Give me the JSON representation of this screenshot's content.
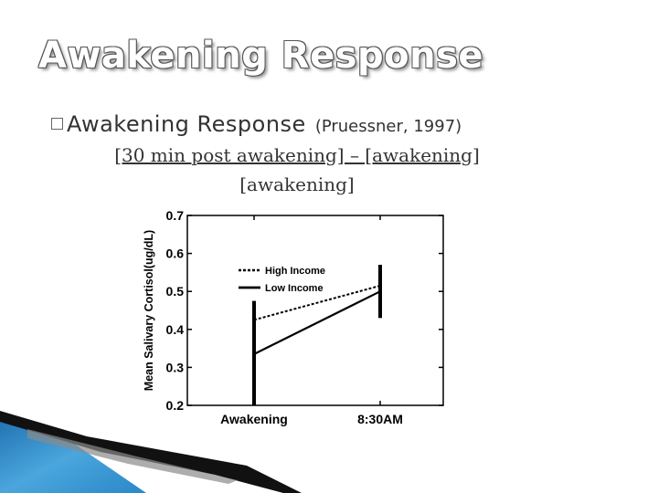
{
  "slide": {
    "title": "Awakening Response",
    "bullet": {
      "main": "Awakening Response",
      "citation": "(Pruessner, 1997)"
    },
    "formula": {
      "numerator": "[30 min post awakening] – [awakening]",
      "denominator": "[awakening]"
    }
  },
  "chart_data": {
    "type": "line",
    "categories": [
      "Awakening",
      "8:30AM"
    ],
    "ylabel": "Mean Salivary Cortisol(ug/dL)",
    "xlabel": "",
    "ylim": [
      0.2,
      0.7
    ],
    "yticks": [
      "0.2",
      "0.3",
      "0.4",
      "0.5",
      "0.6",
      "0.7"
    ],
    "legend_position": "top-left",
    "series": [
      {
        "name": "High Income",
        "style": "dotted",
        "values": [
          0.425,
          0.515
        ],
        "error": [
          0.05,
          0.05
        ]
      },
      {
        "name": "Low Income",
        "style": "solid",
        "values": [
          0.335,
          0.5
        ],
        "error": [
          0.135,
          0.07
        ]
      }
    ]
  },
  "colors": {
    "text": "#333333",
    "chart_ink": "#000000",
    "deco_blue": "#2b87c8"
  }
}
